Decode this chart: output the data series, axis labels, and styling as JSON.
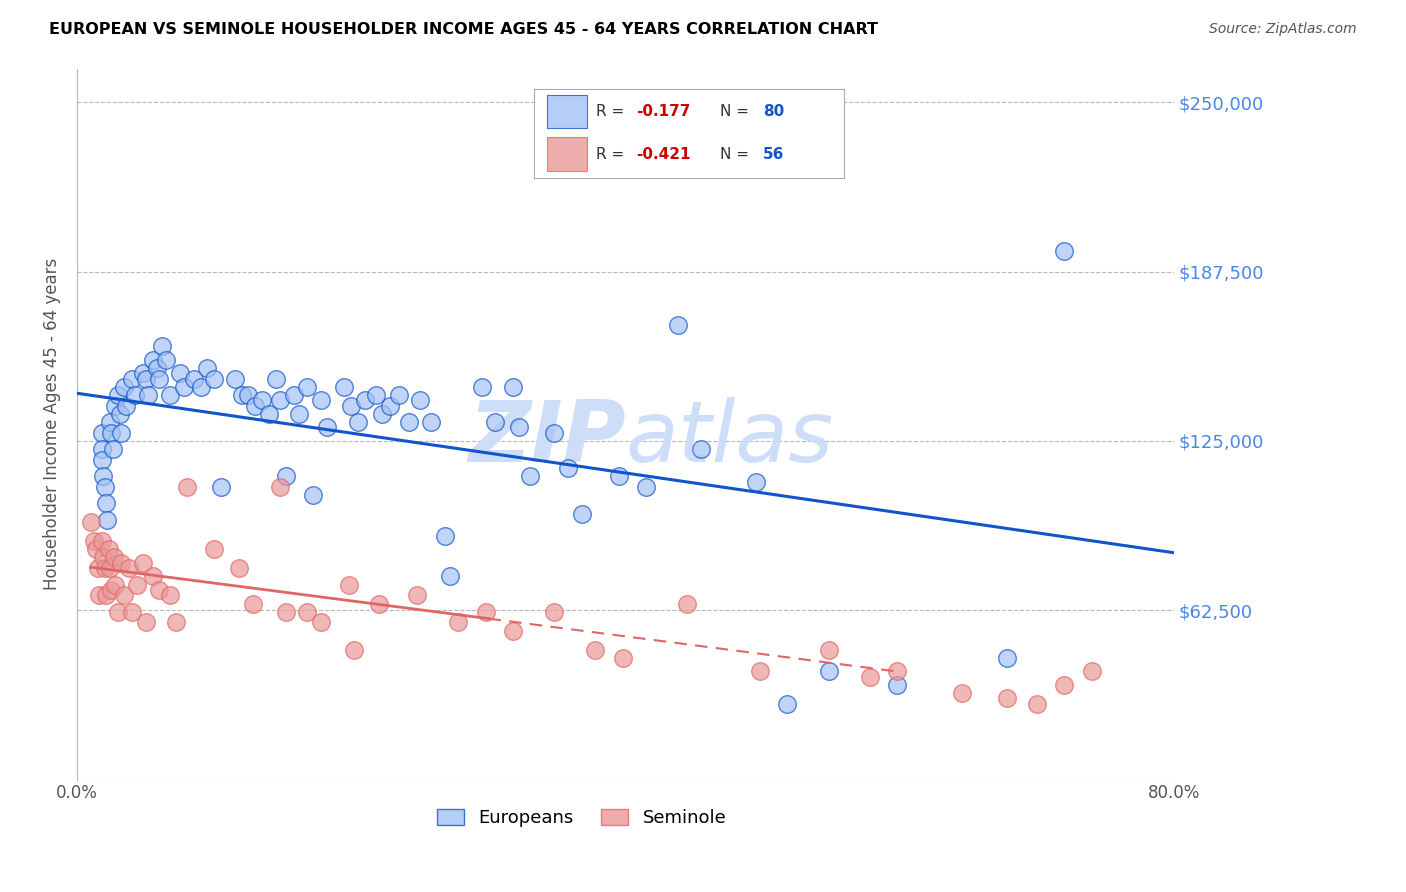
{
  "title": "EUROPEAN VS SEMINOLE HOUSEHOLDER INCOME AGES 45 - 64 YEARS CORRELATION CHART",
  "source": "Source: ZipAtlas.com",
  "ylabel": "Householder Income Ages 45 - 64 years",
  "xlim": [
    0.0,
    0.8
  ],
  "ylim": [
    0,
    262500
  ],
  "yticks": [
    0,
    62500,
    125000,
    187500,
    250000
  ],
  "xticks": [
    0.0,
    0.1,
    0.2,
    0.3,
    0.4,
    0.5,
    0.6,
    0.7,
    0.8
  ],
  "xtick_labels": [
    "0.0%",
    "",
    "",
    "",
    "",
    "",
    "",
    "",
    "80.0%"
  ],
  "right_ytick_labels": [
    "",
    "$62,500",
    "$125,000",
    "$187,500",
    "$250,000"
  ],
  "blue_color": "#a4c2f4",
  "pink_color": "#ea9999",
  "blue_line_color": "#1155cc",
  "pink_line_color": "#cc4125",
  "pink_line_color_solid": "#e06666",
  "grid_color": "#b7b7b7",
  "right_label_color": "#4a86e8",
  "watermark_color": "#c9daf8",
  "legend_R_color": "#cc0000",
  "legend_N_color": "#1155cc",
  "europeans_x": [
    0.018,
    0.018,
    0.018,
    0.019,
    0.02,
    0.021,
    0.022,
    0.024,
    0.025,
    0.026,
    0.028,
    0.03,
    0.031,
    0.032,
    0.034,
    0.036,
    0.04,
    0.042,
    0.048,
    0.05,
    0.052,
    0.055,
    0.058,
    0.06,
    0.062,
    0.065,
    0.068,
    0.075,
    0.078,
    0.085,
    0.09,
    0.095,
    0.1,
    0.105,
    0.115,
    0.12,
    0.125,
    0.13,
    0.135,
    0.14,
    0.145,
    0.148,
    0.152,
    0.158,
    0.162,
    0.168,
    0.172,
    0.178,
    0.182,
    0.195,
    0.2,
    0.205,
    0.21,
    0.218,
    0.222,
    0.228,
    0.235,
    0.242,
    0.25,
    0.258,
    0.268,
    0.272,
    0.295,
    0.305,
    0.318,
    0.322,
    0.33,
    0.348,
    0.358,
    0.368,
    0.395,
    0.415,
    0.438,
    0.455,
    0.495,
    0.518,
    0.548,
    0.598,
    0.678,
    0.72
  ],
  "europeans_y": [
    128000,
    122000,
    118000,
    112000,
    108000,
    102000,
    96000,
    132000,
    128000,
    122000,
    138000,
    142000,
    135000,
    128000,
    145000,
    138000,
    148000,
    142000,
    150000,
    148000,
    142000,
    155000,
    152000,
    148000,
    160000,
    155000,
    142000,
    150000,
    145000,
    148000,
    145000,
    152000,
    148000,
    108000,
    148000,
    142000,
    142000,
    138000,
    140000,
    135000,
    148000,
    140000,
    112000,
    142000,
    135000,
    145000,
    105000,
    140000,
    130000,
    145000,
    138000,
    132000,
    140000,
    142000,
    135000,
    138000,
    142000,
    132000,
    140000,
    132000,
    90000,
    75000,
    145000,
    132000,
    145000,
    130000,
    112000,
    128000,
    115000,
    98000,
    112000,
    108000,
    168000,
    122000,
    110000,
    28000,
    40000,
    35000,
    45000,
    195000
  ],
  "seminole_x": [
    0.01,
    0.012,
    0.014,
    0.015,
    0.016,
    0.018,
    0.019,
    0.02,
    0.021,
    0.023,
    0.024,
    0.025,
    0.027,
    0.028,
    0.03,
    0.032,
    0.034,
    0.038,
    0.04,
    0.044,
    0.048,
    0.05,
    0.055,
    0.06,
    0.068,
    0.072,
    0.08,
    0.1,
    0.118,
    0.128,
    0.148,
    0.152,
    0.168,
    0.178,
    0.198,
    0.202,
    0.22,
    0.248,
    0.278,
    0.298,
    0.318,
    0.348,
    0.378,
    0.398,
    0.445,
    0.498,
    0.548,
    0.578,
    0.598,
    0.645,
    0.678,
    0.7,
    0.72,
    0.74
  ],
  "seminole_y": [
    95000,
    88000,
    85000,
    78000,
    68000,
    88000,
    82000,
    78000,
    68000,
    85000,
    78000,
    70000,
    82000,
    72000,
    62000,
    80000,
    68000,
    78000,
    62000,
    72000,
    80000,
    58000,
    75000,
    70000,
    68000,
    58000,
    108000,
    85000,
    78000,
    65000,
    108000,
    62000,
    62000,
    58000,
    72000,
    48000,
    65000,
    68000,
    58000,
    62000,
    55000,
    62000,
    48000,
    45000,
    65000,
    40000,
    48000,
    38000,
    40000,
    32000,
    30000,
    28000,
    35000,
    40000
  ]
}
